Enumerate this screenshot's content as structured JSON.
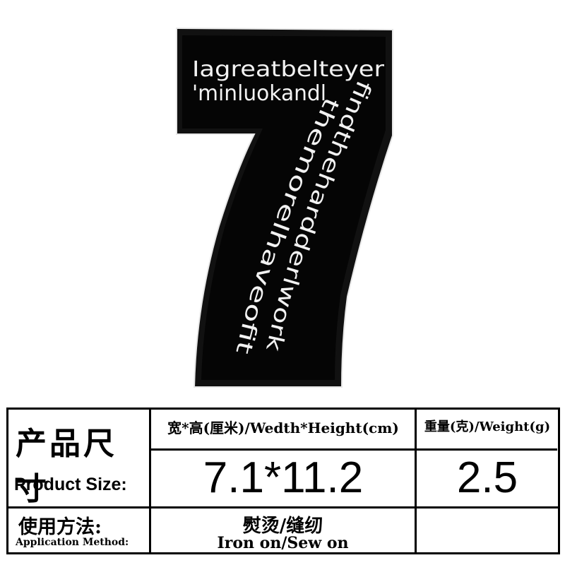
{
  "patch": {
    "top_line_1": "Iagreatbelteyer",
    "top_line_2": "'minluokandl",
    "stem_line_1": "findthehardderlwork",
    "stem_line_2": "themorelhaveofit"
  },
  "table": {
    "product_size_cn": "产品尺寸",
    "product_size_en": "Product Size:",
    "dimension_header": "宽*高(厘米)/Wedth*Height(cm)",
    "dimension_value": "7.1*11.2",
    "weight_header": "重量(克)/Weight(g)",
    "weight_value": "2.5",
    "application_cn": "使用方法:",
    "application_en": "Application Method:",
    "method_cn": "熨烫/缝纫",
    "method_en": "Iron on/Sew on"
  }
}
